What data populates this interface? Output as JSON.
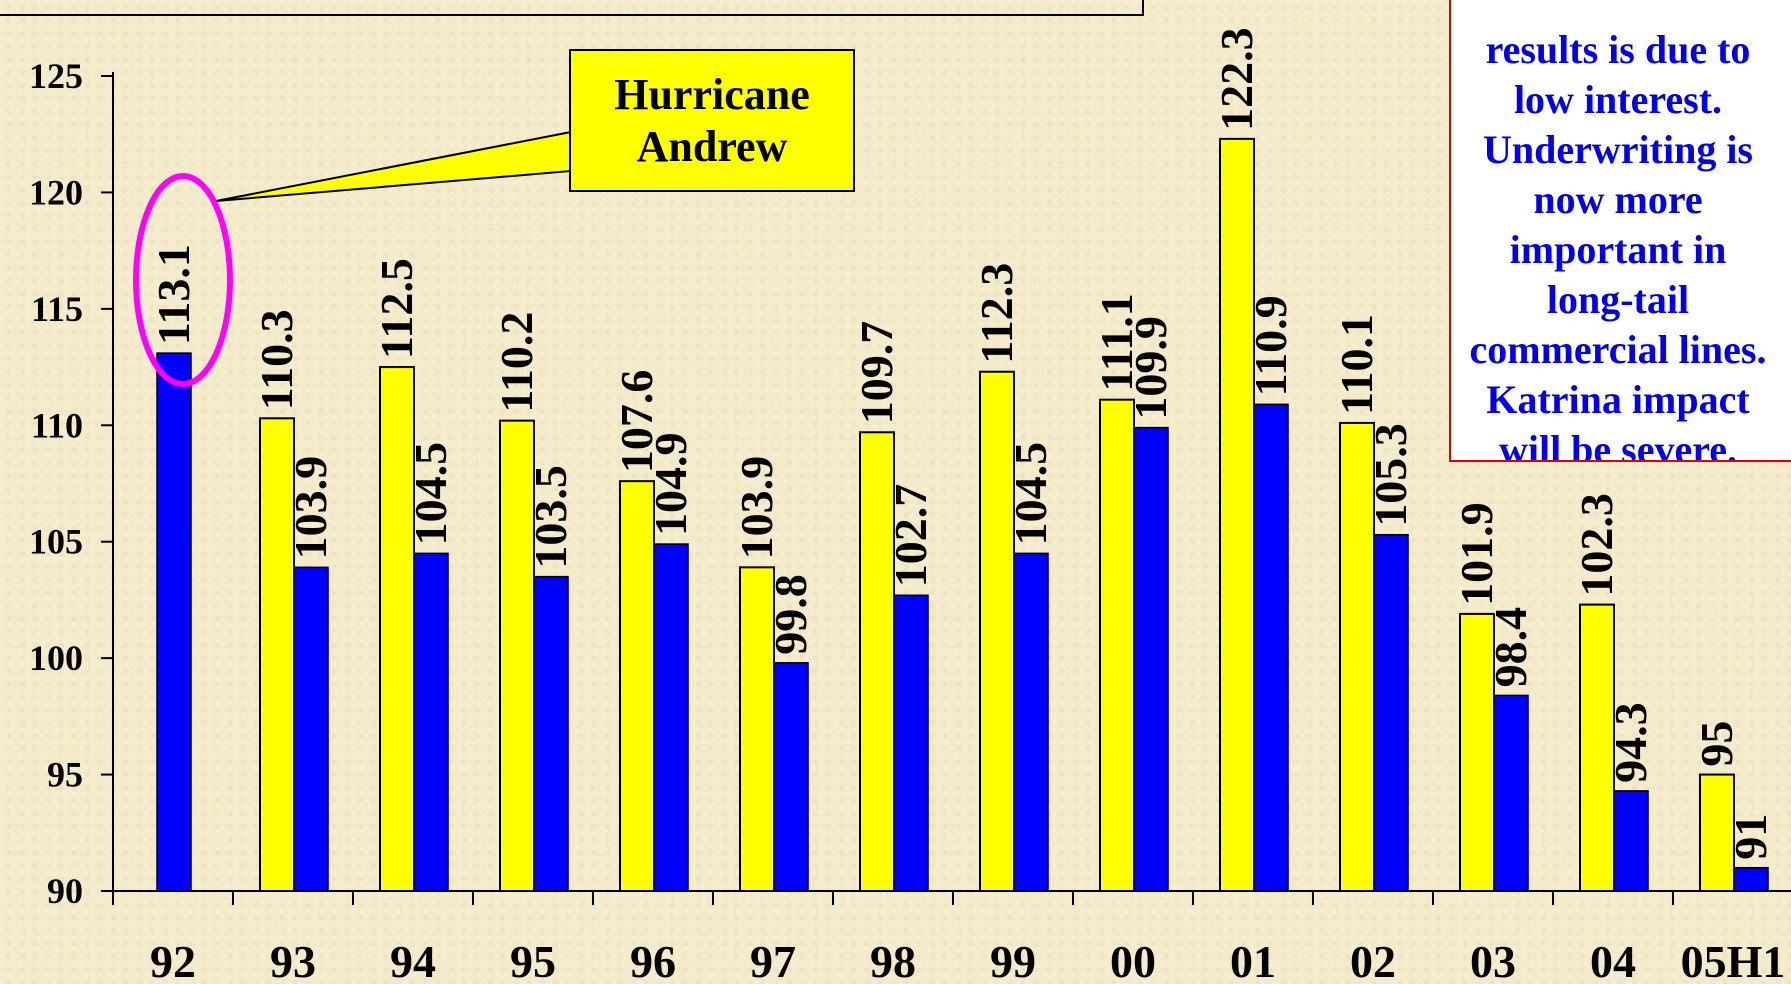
{
  "callout": {
    "text": "Hurricane\nAndrew"
  },
  "note": {
    "text": "results is due to\nlow interest.\nUnderwriting is\nnow more\nimportant in\nlong-tail\ncommercial lines.\nKatrina impact\nwill be severe."
  },
  "colors": {
    "yellow_series": "#ffff00",
    "blue_series": "#0000ff",
    "highlight_ellipse": "#ff00ff",
    "note_text": "#0000ee",
    "note_border": "#e00000"
  },
  "chart_data": {
    "type": "bar",
    "categories": [
      "92",
      "93",
      "94",
      "95",
      "96",
      "97",
      "98",
      "99",
      "00",
      "01",
      "02",
      "03",
      "04",
      "05H1"
    ],
    "series": [
      {
        "values": [
          null,
          110.3,
          112.5,
          110.2,
          107.6,
          103.9,
          109.7,
          112.3,
          111.1,
          122.3,
          110.1,
          101.9,
          102.3,
          95
        ],
        "color": "#ffff00"
      },
      {
        "values": [
          113.1,
          103.9,
          104.5,
          103.5,
          104.9,
          99.8,
          102.7,
          104.5,
          109.9,
          110.9,
          105.3,
          98.4,
          94.3,
          91
        ],
        "color": "#0000ff"
      }
    ],
    "ylim": [
      90,
      125
    ],
    "yticks": [
      90,
      95,
      100,
      105,
      110,
      115,
      120,
      125
    ],
    "title": "",
    "xlabel": "",
    "ylabel": "",
    "grid": false,
    "legend": "none",
    "annotations": [
      "Hurricane Andrew"
    ]
  }
}
